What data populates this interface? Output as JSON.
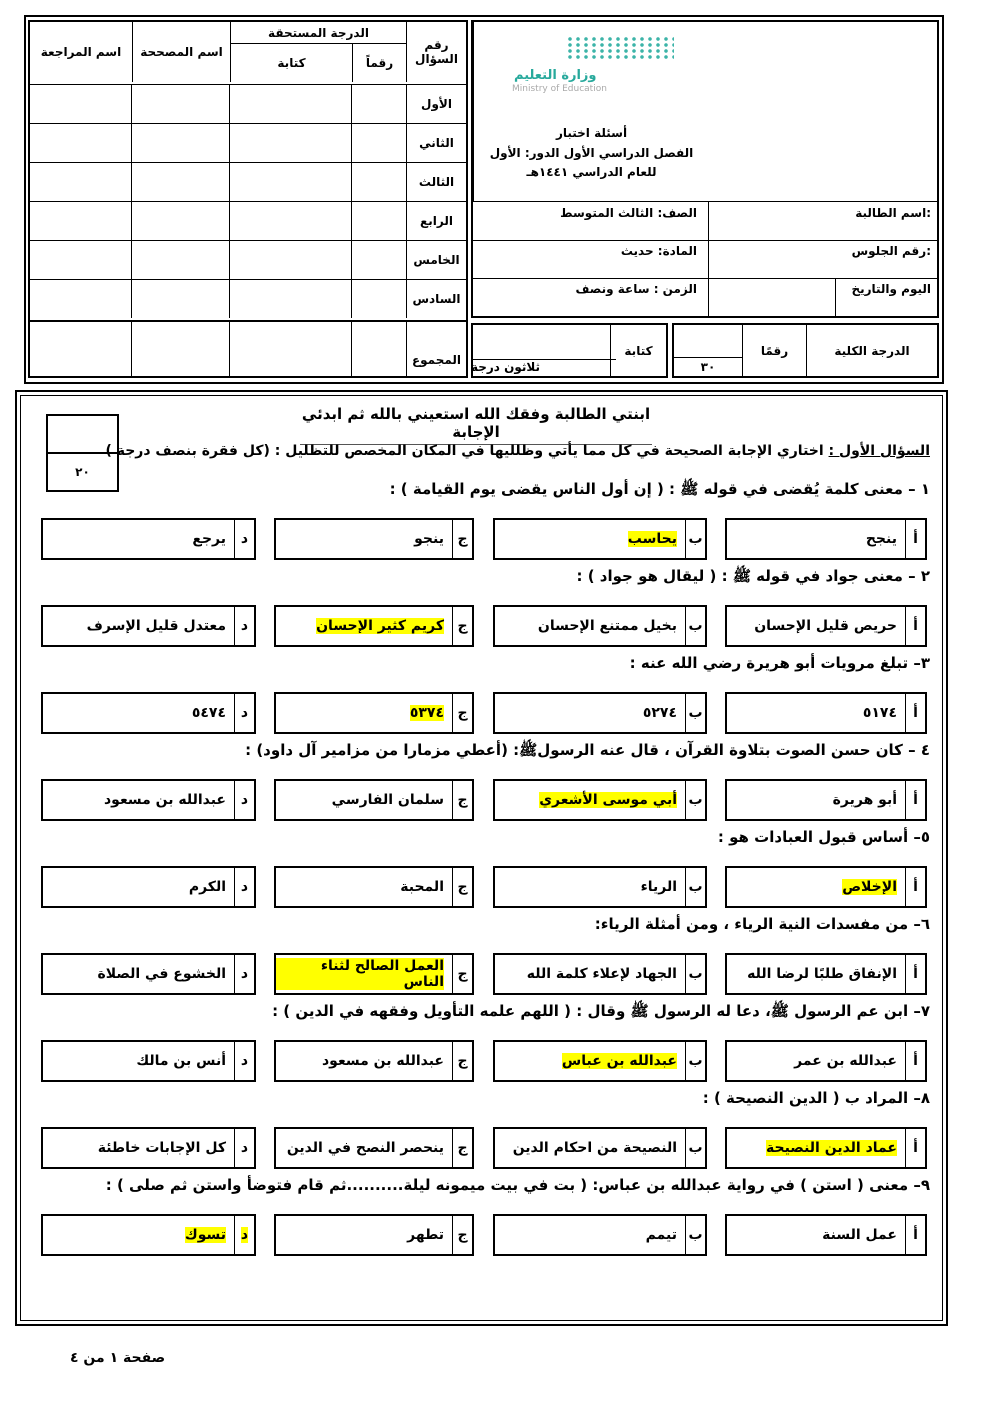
{
  "header": {
    "logo_ar": "وزارة التعليم",
    "logo_en": "Ministry of Education",
    "exam_title": "أسئلة اختبار",
    "exam_term": "الفصل الدراسي الأول الدور: الأول",
    "exam_year": "للعام الدراسي ١٤٤١هـ",
    "student_name_label": "اسم الطالبة:",
    "grade_label": "الصف: الثالث المتوسط",
    "seat_label": "رقم الجلوس:",
    "subject_label": "المادة: حديث",
    "date_label": "اليوم والتاريخ",
    "time_label": "الزمن : ساعة ونصف",
    "total_label": "الدرجة الكلية",
    "numeric_label": "رقمًا",
    "numeric_value": "٣٠",
    "written_label": "كتابة",
    "written_value": "ثلاثون درجة"
  },
  "grading": {
    "col_question": "رقم السؤال",
    "col_grade": "الدرجة المستحقة",
    "col_numeric": "رقماً",
    "col_written": "كتابة",
    "col_corrector": "اسم المصححة",
    "col_reviewer": "اسم المراجعة",
    "rows": [
      "الأول",
      "الثاني",
      "الثالث",
      "الرابع",
      "الخامس",
      "السادس"
    ],
    "total": "المجموع"
  },
  "intro": "ابنتي الطالبة وفقك الله استعيني بالله ثم ابدئي الإجابة",
  "score_box": "٢٠",
  "section_label": "السؤال الأول :",
  "section_text": "اختاري الإجابة الصحيحة في كل مما يأتي وظلليها في المكان المخصص للتظليل : (كل فقرة بنصف درجة )",
  "highlight_color": "#ffff00",
  "letters": [
    "أ",
    "ب",
    "ج",
    "د"
  ],
  "questions": [
    {
      "text": "١ – معنى كلمة يُقضى في قوله ﷺ : ( إن أول الناس يقضى يوم القيامة ) :",
      "options": [
        "ينجح",
        "يحاسب",
        "ينجو",
        "يرجع"
      ],
      "answer": 1
    },
    {
      "text": "٢ – معنى جواد في قوله ﷺ : ( ليقال هو جواد ) :",
      "options": [
        "حريص قليل الإحسان",
        "بخيل ممتنع الإحسان",
        "كريم كثير الإحسان",
        "معتدل قليل الإسرف"
      ],
      "answer": 2
    },
    {
      "text": "٣– تبلغ مرويات أبو هريرة رضي الله عنه :",
      "options": [
        "٥١٧٤",
        "٥٢٧٤",
        "٥٣٧٤",
        "٥٤٧٤"
      ],
      "answer": 2
    },
    {
      "text": "٤ – كان حسن الصوت بتلاوة القرآن ، قال عنه الرسولﷺ: (أعطي مزمارا من مزامير آل داود) :",
      "options": [
        "أبو هريرة",
        "أبي موسى الأشعري",
        "سلمان الفارسي",
        "عبدالله بن مسعود"
      ],
      "answer": 1
    },
    {
      "text": "٥– أساس قبول العبادات هو :",
      "options": [
        "الإخلاص",
        "الرياء",
        "المحبة",
        "الكرم"
      ],
      "answer": 0
    },
    {
      "text": "٦– من مفسدات النية الرياء ، ومن أمثلة الرياء:",
      "options": [
        "الإنفاق طلبًا لرضا الله",
        "الجهاد لإعلاء كلمة الله",
        "العمل الصالح لثناء الناس",
        "الخشوع في الصلاة"
      ],
      "answer": 2
    },
    {
      "text": "٧– ابن عم الرسول ﷺ، دعا له الرسول ﷺ وقال : ( اللهم علمه التأويل وفقهه في الدين ) :",
      "options": [
        "عبدالله بن عمر",
        "عبدالله بن عباس",
        "عبدالله بن مسعود",
        "أنس بن مالك"
      ],
      "answer": 1
    },
    {
      "text": "٨– المراد ب ( الدين النصيحة ) :",
      "options": [
        "عماد الدين النصيحة",
        "النصيحة من احكام الدين",
        "ينحصر النصح في الدين",
        "كل الإجابات خاطئة"
      ],
      "answer": 0
    },
    {
      "text": "٩– معنى ( استن ) في رواية عبدالله بن عباس: ( بت في بيت ميمونه ليلة..........ثم قام فتوضأ واستن ثم صلى ) :",
      "options": [
        "عمل السنة",
        "تيمم",
        "تطهر",
        "تسوك"
      ],
      "answer": 3
    }
  ],
  "footer": "صفحة ١ من ٤"
}
